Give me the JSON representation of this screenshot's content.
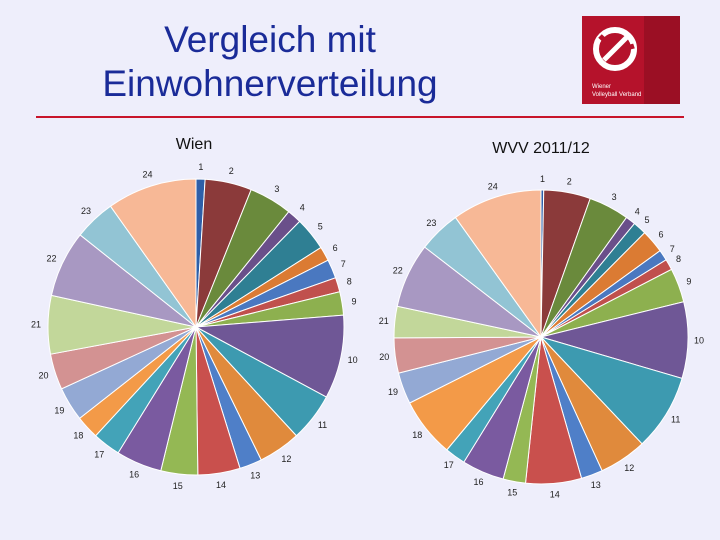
{
  "slide": {
    "title_line1": "Vergleich mit",
    "title_line2": "Einwohnerverteilung"
  },
  "logo": {
    "line1": "Wiener",
    "line2": "Volleyball Verband",
    "icon": "volleyball-swoosh-icon",
    "background_color": "#b5122b"
  },
  "colors": [
    "#2e5fa8",
    "#8b3a3a",
    "#6a8a3c",
    "#6a4f8a",
    "#2f7f93",
    "#db7b33",
    "#4a78c0",
    "#c0504d",
    "#8db04f",
    "#6f5796",
    "#3d9ab0",
    "#e08a3c",
    "#4f7fc8",
    "#c9504d",
    "#94b854",
    "#7a5aa0",
    "#43a3b8",
    "#f39a48",
    "#93a9d4",
    "#d39292",
    "#c2d79a",
    "#a898c2",
    "#92c4d4",
    "#f7b896"
  ],
  "chart_data": [
    {
      "type": "pie",
      "title": "Wien",
      "categories": [
        "1",
        "2",
        "3",
        "4",
        "5",
        "6",
        "7",
        "8",
        "9",
        "10",
        "11",
        "12",
        "13",
        "14",
        "15",
        "16",
        "17",
        "18",
        "19",
        "20",
        "21",
        "22",
        "23",
        "24"
      ],
      "values": [
        1.0,
        5.2,
        4.8,
        1.6,
        3.7,
        1.6,
        2.1,
        1.6,
        2.6,
        9.3,
        5.4,
        4.7,
        2.5,
        4.7,
        4.1,
        5.1,
        3.1,
        2.6,
        3.8,
        4.0,
        6.5,
        7.4,
        4.6,
        10.0
      ],
      "start_angle_deg": 0,
      "direction": "clockwise"
    },
    {
      "type": "pie",
      "title": "WVV 2011/12",
      "categories": [
        "1",
        "2",
        "3",
        "4",
        "5",
        "6",
        "7",
        "8",
        "9",
        "10",
        "11",
        "12",
        "13",
        "14",
        "15",
        "16",
        "17",
        "18",
        "19",
        "20",
        "21",
        "22",
        "23",
        "24"
      ],
      "values": [
        0.3,
        5.2,
        4.5,
        1.1,
        1.5,
        2.6,
        1.2,
        1.2,
        3.8,
        8.5,
        8.5,
        5.3,
        2.4,
        6.2,
        2.5,
        4.7,
        2.3,
        6.6,
        3.5,
        3.9,
        3.5,
        7.2,
        4.7,
        10.0
      ],
      "start_angle_deg": 0,
      "direction": "clockwise"
    }
  ]
}
